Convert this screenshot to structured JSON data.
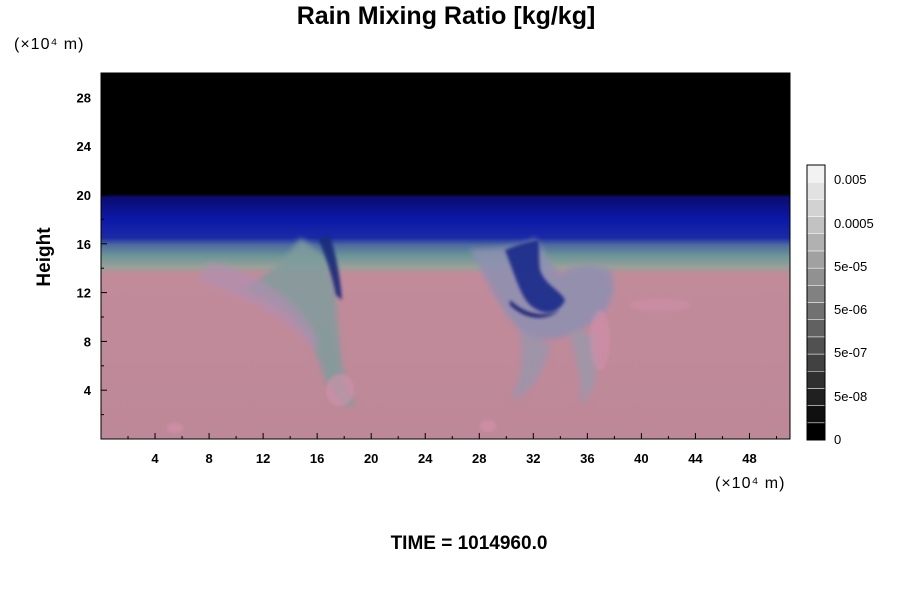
{
  "chart_data": {
    "type": "heatmap",
    "title": "Rain Mixing Ratio [kg/kg]",
    "ylabel": "Height",
    "y_unit": "(×10⁴ m)",
    "x_unit": "(×10⁴ m)",
    "footer": "TIME = 1014960.0",
    "xlim": [
      0,
      51
    ],
    "ylim": [
      0,
      30
    ],
    "x_ticks": [
      {
        "value": 4,
        "label": "4"
      },
      {
        "value": 8,
        "label": "8"
      },
      {
        "value": 12,
        "label": "12"
      },
      {
        "value": 16,
        "label": "16"
      },
      {
        "value": 20,
        "label": "20"
      },
      {
        "value": 24,
        "label": "24"
      },
      {
        "value": 28,
        "label": "28"
      },
      {
        "value": 32,
        "label": "32"
      },
      {
        "value": 36,
        "label": "36"
      },
      {
        "value": 40,
        "label": "40"
      },
      {
        "value": 44,
        "label": "44"
      },
      {
        "value": 48,
        "label": "48"
      }
    ],
    "y_ticks": [
      {
        "value": 4,
        "label": "4"
      },
      {
        "value": 8,
        "label": "8"
      },
      {
        "value": 12,
        "label": "12"
      },
      {
        "value": 16,
        "label": "16"
      },
      {
        "value": 20,
        "label": "20"
      },
      {
        "value": 24,
        "label": "24"
      },
      {
        "value": 28,
        "label": "28"
      }
    ],
    "colorbar": {
      "labels": [
        "0.005",
        "0.0005",
        "5e-05",
        "5e-06",
        "5e-07",
        "5e-08",
        "0"
      ],
      "levels": 16,
      "colors": {
        "dark": "#000000",
        "light": "#f2f2f2"
      }
    },
    "field": {
      "description_colors": {
        "upper_black": "#000000",
        "blue_band": "#0d1aa0",
        "teal_layer": "#5f9a9e",
        "lower_pink": "#bd8898",
        "plume_gray": "#8d8fb1",
        "plume_core": "#1a2880"
      },
      "layers": [
        {
          "name": "black",
          "y_from": 20,
          "y_to": 30
        },
        {
          "name": "blue",
          "y_from": 16.5,
          "y_to": 20
        },
        {
          "name": "teal",
          "y_from": 13.5,
          "y_to": 16.5
        },
        {
          "name": "pink",
          "y_from": 0,
          "y_to": 13.5
        }
      ],
      "plumes": [
        {
          "x_center": 17,
          "y_top": 16,
          "y_bottom": 3
        },
        {
          "x_center": 32,
          "y_top": 17,
          "y_bottom": 3
        }
      ]
    }
  }
}
